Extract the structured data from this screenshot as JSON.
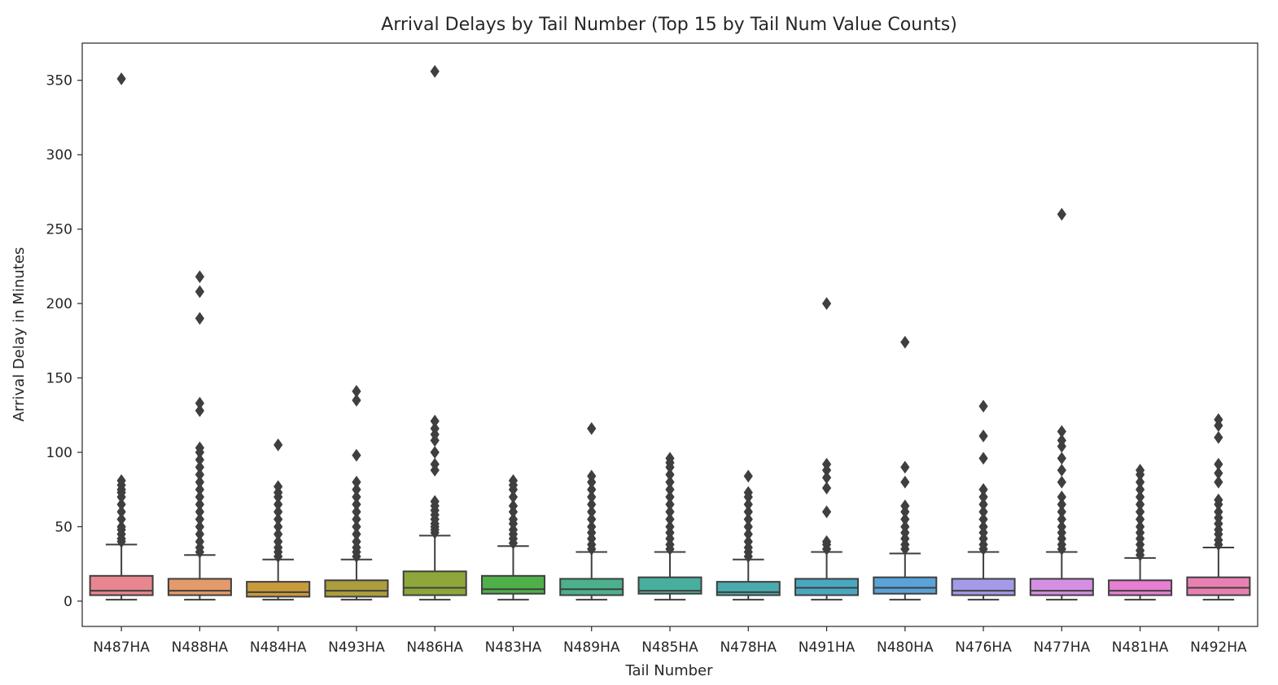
{
  "chart_data": {
    "type": "box",
    "title": "Arrival Delays by Tail Number (Top 15 by Tail Num Value Counts)",
    "xlabel": "Tail Number",
    "ylabel": "Arrival Delay in Minutes",
    "ylim": [
      -17,
      375
    ],
    "yticks": [
      0,
      50,
      100,
      150,
      200,
      250,
      300,
      350
    ],
    "grid": false,
    "categories": [
      "N487HA",
      "N488HA",
      "N484HA",
      "N493HA",
      "N486HA",
      "N483HA",
      "N489HA",
      "N485HA",
      "N478HA",
      "N491HA",
      "N480HA",
      "N476HA",
      "N477HA",
      "N481HA",
      "N492HA"
    ],
    "boxes": [
      {
        "name": "N487HA",
        "color": "#e8868f",
        "min": 1,
        "q1": 4,
        "median": 7,
        "q3": 17,
        "max": 38,
        "outliers": [
          40,
          42,
          45,
          48,
          50,
          55,
          60,
          65,
          70,
          73,
          75,
          78,
          81,
          351
        ]
      },
      {
        "name": "N488HA",
        "color": "#e49a6a",
        "min": 1,
        "q1": 4,
        "median": 7,
        "q3": 15,
        "max": 31,
        "outliers": [
          33,
          36,
          40,
          45,
          50,
          55,
          60,
          65,
          70,
          75,
          80,
          85,
          90,
          95,
          100,
          103,
          128,
          133,
          190,
          208,
          218
        ]
      },
      {
        "name": "N484HA",
        "color": "#c99a3c",
        "min": 1,
        "q1": 3,
        "median": 6,
        "q3": 13,
        "max": 28,
        "outliers": [
          30,
          33,
          36,
          40,
          45,
          50,
          55,
          60,
          65,
          70,
          73,
          77,
          105
        ]
      },
      {
        "name": "N493HA",
        "color": "#ad9d3c",
        "min": 1,
        "q1": 3,
        "median": 7,
        "q3": 14,
        "max": 28,
        "outliers": [
          30,
          33,
          36,
          40,
          45,
          50,
          55,
          60,
          65,
          70,
          75,
          80,
          98,
          135,
          141
        ]
      },
      {
        "name": "N486HA",
        "color": "#8ea73b",
        "min": 1,
        "q1": 4,
        "median": 9,
        "q3": 20,
        "max": 44,
        "outliers": [
          46,
          48,
          50,
          52,
          55,
          58,
          61,
          64,
          67,
          88,
          92,
          100,
          108,
          112,
          116,
          121,
          356
        ]
      },
      {
        "name": "N483HA",
        "color": "#4fb049",
        "min": 1,
        "q1": 5,
        "median": 8,
        "q3": 17,
        "max": 37,
        "outliers": [
          39,
          42,
          45,
          48,
          52,
          55,
          60,
          64,
          70,
          75,
          78,
          81
        ]
      },
      {
        "name": "N489HA",
        "color": "#4bb08c",
        "min": 1,
        "q1": 4,
        "median": 8,
        "q3": 15,
        "max": 33,
        "outliers": [
          35,
          38,
          42,
          46,
          50,
          55,
          60,
          65,
          70,
          75,
          80,
          84,
          116
        ]
      },
      {
        "name": "N485HA",
        "color": "#48ae9e",
        "min": 1,
        "q1": 5,
        "median": 7,
        "q3": 16,
        "max": 33,
        "outliers": [
          35,
          38,
          42,
          46,
          50,
          55,
          60,
          65,
          70,
          75,
          80,
          85,
          90,
          93,
          96
        ]
      },
      {
        "name": "N478HA",
        "color": "#4aabaf",
        "min": 1,
        "q1": 4,
        "median": 6,
        "q3": 13,
        "max": 28,
        "outliers": [
          30,
          33,
          36,
          40,
          45,
          50,
          55,
          60,
          65,
          70,
          73,
          84
        ]
      },
      {
        "name": "N491HA",
        "color": "#4aa7c1",
        "min": 1,
        "q1": 4,
        "median": 9,
        "q3": 15,
        "max": 33,
        "outliers": [
          35,
          38,
          40,
          60,
          76,
          83,
          88,
          92,
          200
        ]
      },
      {
        "name": "N480HA",
        "color": "#5aa3d8",
        "min": 1,
        "q1": 5,
        "median": 9,
        "q3": 16,
        "max": 32,
        "outliers": [
          35,
          38,
          42,
          46,
          50,
          55,
          60,
          64,
          80,
          90,
          174
        ]
      },
      {
        "name": "N476HA",
        "color": "#a39be8",
        "min": 1,
        "q1": 4,
        "median": 7,
        "q3": 15,
        "max": 33,
        "outliers": [
          35,
          38,
          42,
          46,
          50,
          55,
          60,
          65,
          70,
          75,
          96,
          111,
          131
        ]
      },
      {
        "name": "N477HA",
        "color": "#d48fe2",
        "min": 1,
        "q1": 4,
        "median": 7,
        "q3": 15,
        "max": 33,
        "outliers": [
          35,
          38,
          42,
          46,
          50,
          55,
          60,
          65,
          70,
          80,
          88,
          96,
          104,
          108,
          114,
          260
        ]
      },
      {
        "name": "N481HA",
        "color": "#e87ed3",
        "min": 1,
        "q1": 4,
        "median": 7,
        "q3": 14,
        "max": 29,
        "outliers": [
          31,
          34,
          38,
          42,
          46,
          50,
          55,
          60,
          65,
          70,
          75,
          80,
          85,
          88
        ]
      },
      {
        "name": "N492HA",
        "color": "#e881b2",
        "min": 1,
        "q1": 4,
        "median": 9,
        "q3": 16,
        "max": 36,
        "outliers": [
          38,
          41,
          45,
          48,
          52,
          56,
          60,
          65,
          68,
          80,
          86,
          92,
          110,
          118,
          122
        ]
      }
    ]
  }
}
